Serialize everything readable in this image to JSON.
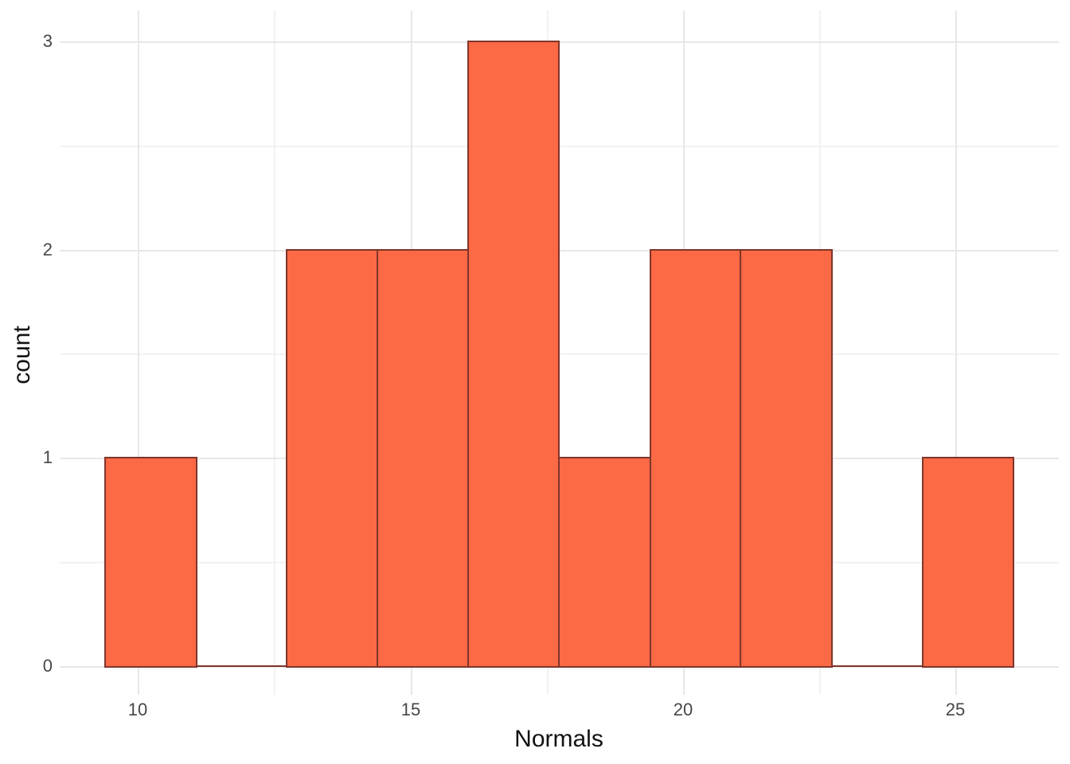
{
  "figure": {
    "xlabel": "Normals",
    "ylabel": "count"
  },
  "chart_data": {
    "type": "histogram",
    "title": "",
    "xlabel": "Normals",
    "ylabel": "count",
    "bin_edges": [
      9.4,
      11.07,
      12.73,
      14.4,
      16.06,
      17.73,
      19.4,
      21.06,
      22.73,
      24.4,
      26.06
    ],
    "counts": [
      1,
      0,
      2,
      2,
      3,
      1,
      2,
      2,
      0,
      1
    ],
    "total_observations": 14,
    "x_ticks": {
      "values": [
        10,
        15,
        20,
        25
      ],
      "labels": [
        "10",
        "15",
        "20",
        "25"
      ],
      "minor": [
        12.5,
        17.5,
        22.5
      ]
    },
    "y_ticks": {
      "values": [
        0,
        1,
        2,
        3
      ],
      "labels": [
        "0",
        "1",
        "2",
        "3"
      ],
      "minor": [
        0.5,
        1.5,
        2.5
      ]
    },
    "xlim": [
      8.55,
      26.9
    ],
    "ylim": [
      -0.15,
      3.15
    ],
    "grid": "major+minor",
    "legend": false,
    "colors": {
      "bar_fill": "#FB6945",
      "bar_stroke": "#7E352B",
      "grid_major": "#E7E7E7",
      "grid_minor": "#F2F2F2",
      "tick_label": "#474747",
      "axis_title": "#111111",
      "background": "#FFFFFF"
    }
  }
}
